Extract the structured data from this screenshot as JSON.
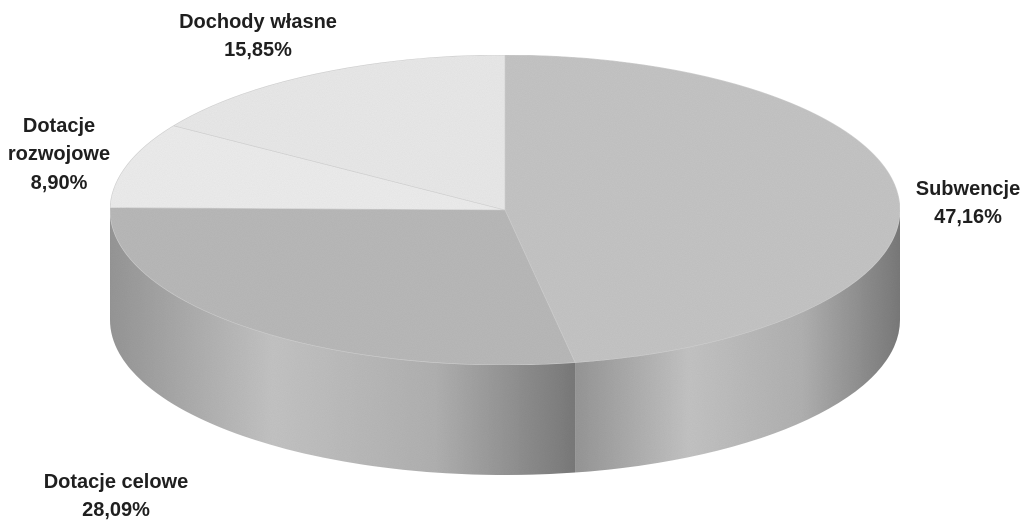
{
  "chart_data": {
    "type": "pie",
    "slices": [
      {
        "label_lines": [
          "Subwencje"
        ],
        "value": 47.16,
        "value_label": "47,16%",
        "color": "#c9c9c9"
      },
      {
        "label_lines": [
          "Dotacje celowe"
        ],
        "value": 28.09,
        "value_label": "28,09%",
        "color": "#bdbdbd"
      },
      {
        "label_lines": [
          "Dotacje",
          "rozwojowe"
        ],
        "value": 8.9,
        "value_label": "8,90%",
        "color": "#f2f2f2"
      },
      {
        "label_lines": [
          "Dochody własne"
        ],
        "value": 15.85,
        "value_label": "15,85%",
        "color": "#eeeeee"
      }
    ],
    "three_d": true,
    "legend": "none"
  }
}
